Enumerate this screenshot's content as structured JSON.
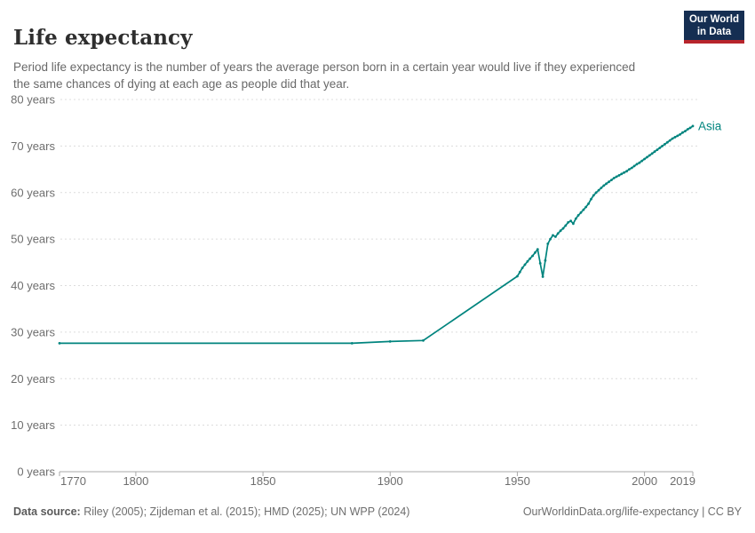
{
  "header": {
    "title": "Life expectancy",
    "subtitle": "Period life expectancy is the number of years the average person born in a certain year would live if they experienced the same chances of dying at each age as people did that year.",
    "logo": {
      "line1": "Our World",
      "line2": "in Data",
      "bg_color": "#152e52",
      "accent_color": "#b7252c"
    }
  },
  "chart_data": {
    "type": "line",
    "title": "Life expectancy",
    "xlabel": "",
    "ylabel": "",
    "xlim": [
      1770,
      2019
    ],
    "ylim": [
      0,
      80
    ],
    "grid": "horizontal-dashed",
    "legend_position": "end-of-line-label",
    "x_ticks": [
      1770,
      1800,
      1850,
      1900,
      1950,
      2000,
      2019
    ],
    "x_tick_labels": [
      "1770",
      "1800",
      "1850",
      "1900",
      "1950",
      "2000",
      "2019"
    ],
    "y_ticks": [
      0,
      10,
      20,
      30,
      40,
      50,
      60,
      70,
      80
    ],
    "y_tick_labels": [
      "0 years",
      "10 years",
      "20 years",
      "30 years",
      "40 years",
      "50 years",
      "60 years",
      "70 years",
      "80 years"
    ],
    "colors": {
      "grid": "#dcdcdc",
      "axis": "#a9a9a9",
      "tick_text": "#6e6e6e"
    },
    "series": [
      {
        "name": "Asia",
        "color": "#00847e",
        "points": [
          [
            1770,
            27.6
          ],
          [
            1885,
            27.6
          ],
          [
            1900,
            28.0
          ],
          [
            1913,
            28.2
          ],
          [
            1950,
            42.0
          ],
          [
            1951,
            42.9
          ],
          [
            1952,
            43.8
          ],
          [
            1953,
            44.5
          ],
          [
            1954,
            45.2
          ],
          [
            1955,
            45.8
          ],
          [
            1956,
            46.4
          ],
          [
            1957,
            47.1
          ],
          [
            1958,
            47.8
          ],
          [
            1959,
            44.8
          ],
          [
            1960,
            41.9
          ],
          [
            1961,
            45.4
          ],
          [
            1962,
            49.0
          ],
          [
            1963,
            50.0
          ],
          [
            1964,
            50.8
          ],
          [
            1965,
            50.5
          ],
          [
            1966,
            51.2
          ],
          [
            1967,
            51.8
          ],
          [
            1968,
            52.3
          ],
          [
            1969,
            52.9
          ],
          [
            1970,
            53.6
          ],
          [
            1971,
            53.9
          ],
          [
            1972,
            53.3
          ],
          [
            1973,
            54.4
          ],
          [
            1974,
            55.1
          ],
          [
            1975,
            55.7
          ],
          [
            1976,
            56.3
          ],
          [
            1977,
            56.9
          ],
          [
            1978,
            57.6
          ],
          [
            1979,
            58.6
          ],
          [
            1980,
            59.4
          ],
          [
            1981,
            60.0
          ],
          [
            1982,
            60.5
          ],
          [
            1983,
            61.0
          ],
          [
            1984,
            61.5
          ],
          [
            1985,
            61.9
          ],
          [
            1986,
            62.3
          ],
          [
            1987,
            62.7
          ],
          [
            1988,
            63.1
          ],
          [
            1989,
            63.4
          ],
          [
            1990,
            63.7
          ],
          [
            1991,
            64.0
          ],
          [
            1992,
            64.3
          ],
          [
            1993,
            64.6
          ],
          [
            1994,
            65.0
          ],
          [
            1995,
            65.3
          ],
          [
            1996,
            65.7
          ],
          [
            1997,
            66.1
          ],
          [
            1998,
            66.4
          ],
          [
            1999,
            66.8
          ],
          [
            2000,
            67.2
          ],
          [
            2001,
            67.6
          ],
          [
            2002,
            68.0
          ],
          [
            2003,
            68.4
          ],
          [
            2004,
            68.8
          ],
          [
            2005,
            69.2
          ],
          [
            2006,
            69.6
          ],
          [
            2007,
            70.0
          ],
          [
            2008,
            70.4
          ],
          [
            2009,
            70.8
          ],
          [
            2010,
            71.2
          ],
          [
            2011,
            71.6
          ],
          [
            2012,
            71.9
          ],
          [
            2013,
            72.2
          ],
          [
            2014,
            72.5
          ],
          [
            2015,
            72.9
          ],
          [
            2016,
            73.2
          ],
          [
            2017,
            73.6
          ],
          [
            2018,
            73.9
          ],
          [
            2019,
            74.3
          ]
        ]
      }
    ]
  },
  "footer": {
    "source_label": "Data source:",
    "source_text": " Riley (2005); Zijdeman et al. (2015); HMD (2025); UN WPP (2024)",
    "credit": "OurWorldinData.org/life-expectancy | CC BY"
  }
}
